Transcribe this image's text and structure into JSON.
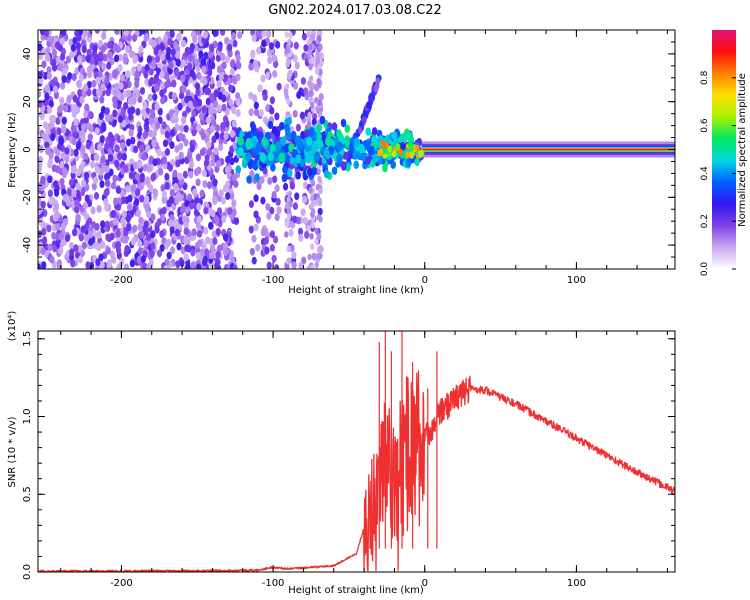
{
  "title": "GN02.2024.017.03.08.C22",
  "colorbar": {
    "label": "Normalized spectral amplitude",
    "ticks": [
      "0.0",
      "0.2",
      "0.4",
      "0.6",
      "0.8"
    ],
    "tick_values": [
      0.0,
      0.2,
      0.4,
      0.6,
      0.8
    ],
    "range": [
      0.0,
      1.0
    ],
    "colors": [
      "#ffffff",
      "#c8a8f0",
      "#8040e8",
      "#3018f0",
      "#0060ff",
      "#00d8e0",
      "#00e860",
      "#a8f000",
      "#ffe000",
      "#ff8000",
      "#ff1010",
      "#e0107a"
    ]
  },
  "chart_data": [
    {
      "type": "heatmap",
      "panel": "spectrogram",
      "xlabel": "Height of straight line (km)",
      "ylabel": "Frequency (Hz)",
      "xlim": [
        -255,
        165
      ],
      "ylim": [
        -50,
        50
      ],
      "xticks": [
        -200,
        -100,
        0,
        100
      ],
      "xtick_labels": [
        "-200",
        "-100",
        "0",
        "100"
      ],
      "yticks": [
        -40,
        -20,
        0,
        20,
        40
      ],
      "ytick_labels": [
        "-40",
        "-20",
        "0",
        "20",
        "40"
      ],
      "grid": false,
      "features": {
        "noise_band_x": [
          -255,
          -68
        ],
        "gap_x": [
          -122,
          -115
        ],
        "carrier_start_x": -2,
        "carrier_freq": 0,
        "carrier_amplitude": 0.9,
        "chirp_x": [
          -45,
          -30
        ],
        "chirp_freq": [
          5,
          30
        ]
      }
    },
    {
      "type": "line",
      "panel": "snr",
      "xlabel": "Height of straight line (km)",
      "ylabel": "SNR (10 * v/v)",
      "scale_label": "(x10⁴)",
      "xlim": [
        -255,
        165
      ],
      "ylim": [
        0,
        1.55
      ],
      "xticks": [
        -200,
        -100,
        0,
        100
      ],
      "xtick_labels": [
        "-200",
        "-100",
        "0",
        "100"
      ],
      "yticks": [
        0.0,
        0.5,
        1.0,
        1.5
      ],
      "ytick_labels": [
        "0.0",
        "0.5",
        "1.0",
        "1.5"
      ],
      "color": "#ee3030",
      "grid": false,
      "series": [
        {
          "x": [
            -255,
            -150,
            -110,
            -100,
            -90,
            -60,
            -45,
            -35,
            -28,
            -20,
            -10,
            0,
            10,
            20,
            30,
            40,
            60,
            80,
            100,
            120,
            140,
            165
          ],
          "values": [
            0.005,
            0.008,
            0.012,
            0.03,
            0.02,
            0.04,
            0.12,
            0.45,
            0.75,
            0.6,
            0.85,
            0.85,
            1.02,
            1.12,
            1.18,
            1.17,
            1.08,
            0.97,
            0.86,
            0.75,
            0.64,
            0.52
          ]
        }
      ],
      "spikes": [
        {
          "x": -30,
          "y": 1.48
        },
        {
          "x": -26,
          "y": 1.55
        },
        {
          "x": -22,
          "y": 1.42
        },
        {
          "x": -15,
          "y": 1.55
        },
        {
          "x": -8,
          "y": 1.35
        },
        {
          "x": 8,
          "y": 1.42
        },
        {
          "x": 2,
          "y": 1.18
        }
      ]
    }
  ]
}
